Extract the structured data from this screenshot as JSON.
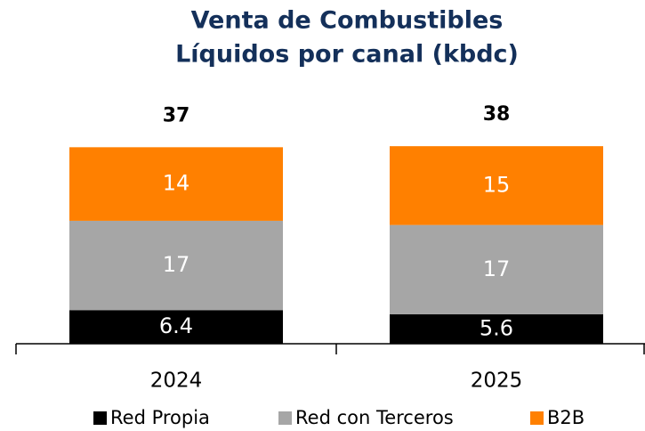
{
  "chart_data": {
    "type": "stacked_bar",
    "title": [
      "Venta de Combustibles",
      "Líquidos por canal (kbdc)"
    ],
    "categories": [
      "2024",
      "2025"
    ],
    "series": [
      {
        "name": "Red Propia",
        "color": "#000000",
        "values": [
          6.4,
          5.6
        ]
      },
      {
        "name": "Red con Terceros",
        "color": "#a6a6a6",
        "values": [
          17,
          17
        ]
      },
      {
        "name": "B2B",
        "color": "#ff8000",
        "values": [
          14,
          15
        ]
      }
    ],
    "totals": [
      37,
      38
    ],
    "legend": "bottom"
  }
}
